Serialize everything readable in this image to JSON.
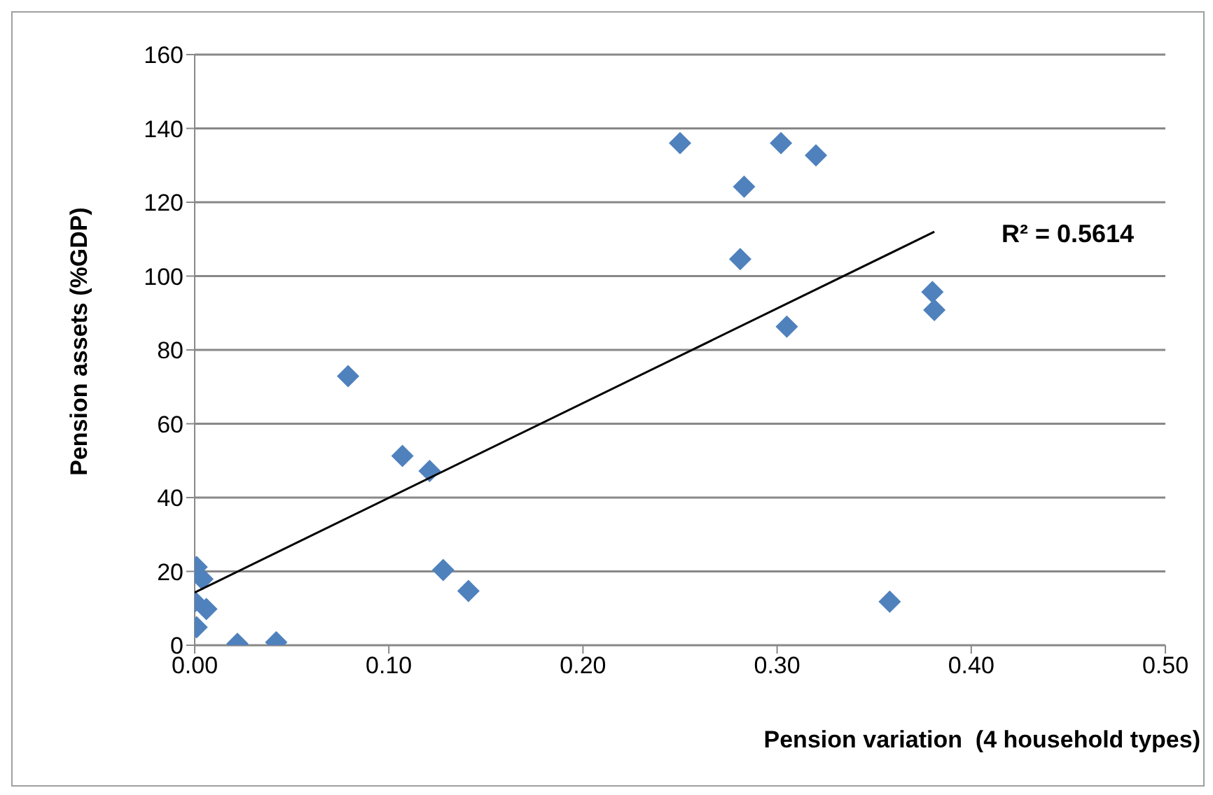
{
  "chart_data": {
    "type": "scatter",
    "xlabel": "Pension variation  (4 household types)",
    "ylabel": "Pension assets (%GDP)",
    "annotations": [
      "R² = 0.5614"
    ],
    "series": [
      {
        "color": "#4f81bd",
        "marker": "diamond",
        "x": [
          0.001,
          0.004,
          0.0,
          0.006,
          0.001,
          0.022,
          0.042,
          0.079,
          0.107,
          0.121,
          0.128,
          0.141,
          0.25,
          0.283,
          0.281,
          0.302,
          0.305,
          0.32,
          0.358,
          0.38,
          0.381
        ],
        "values": [
          21.2,
          17.9,
          11.8,
          9.8,
          4.9,
          0.4,
          0.8,
          72.9,
          51.3,
          47.2,
          20.4,
          14.7,
          136,
          124.2,
          104.6,
          136,
          86.3,
          132.7,
          11.8,
          95.7,
          90.8
        ]
      },
      {
        "type": "line",
        "color": "#000000",
        "marker": "none",
        "x": [
          0,
          0.381
        ],
        "values": [
          14.3,
          112
        ]
      }
    ],
    "xlim": [
      0,
      0.5
    ],
    "xticks": [
      {
        "value": 0,
        "label": "0.00"
      },
      {
        "value": 0.1,
        "label": "0.10"
      },
      {
        "value": 0.2,
        "label": "0.20"
      },
      {
        "value": 0.3,
        "label": "0.30"
      },
      {
        "value": 0.4,
        "label": "0.40"
      },
      {
        "value": 0.5,
        "label": "0.50"
      }
    ],
    "ylim": [
      0,
      160
    ],
    "yticks": [
      0,
      20,
      40,
      60,
      80,
      100,
      120,
      140,
      160
    ],
    "grid": "y"
  }
}
